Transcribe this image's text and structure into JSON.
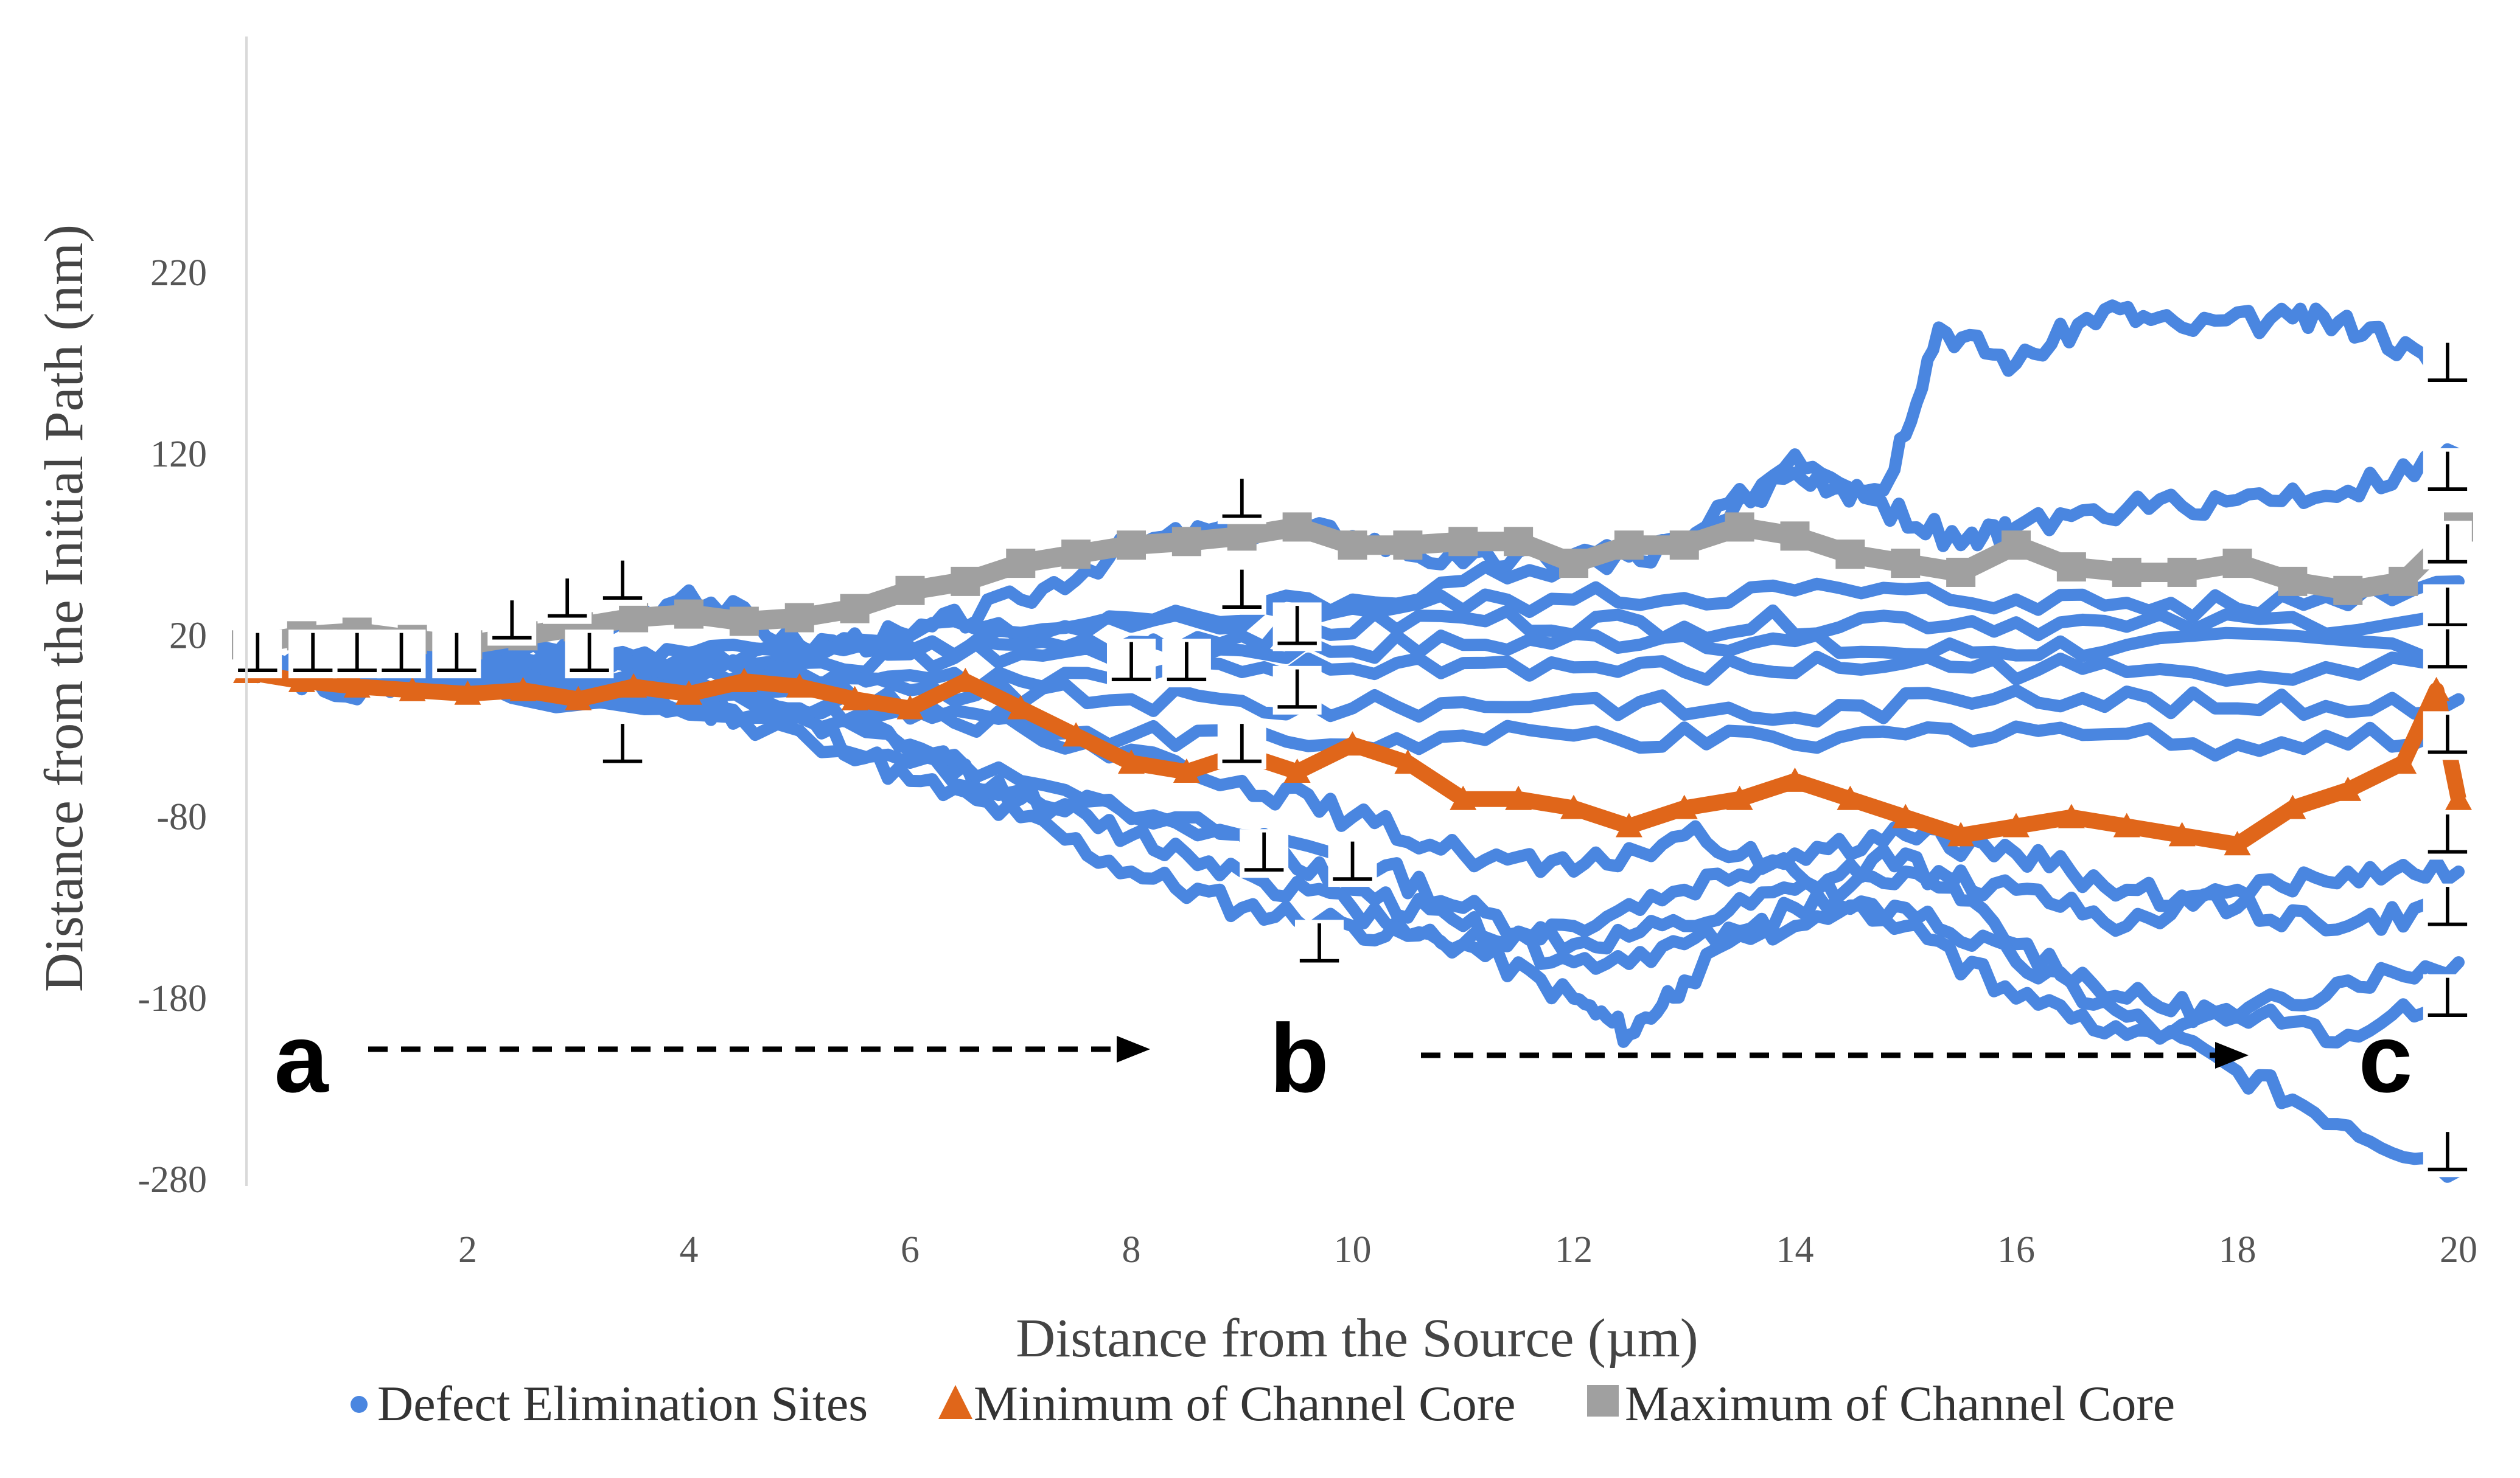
{
  "chart_data": {
    "type": "scatter",
    "title": "",
    "xlabel": "Distance from the Source (µm)",
    "ylabel": "Distance from the Initial Path (nm)",
    "xlim": [
      0,
      20
    ],
    "ylim": [
      -280,
      280
    ],
    "x_ticks": [
      2,
      4,
      6,
      8,
      10,
      12,
      14,
      16,
      18,
      20
    ],
    "y_ticks": [
      220,
      120,
      20,
      -80,
      -180,
      -280
    ],
    "grid": false,
    "legend_position": "bottom",
    "legend": [
      {
        "label": "Defect Elimination Sites",
        "marker": "circle",
        "color": "#4A86E0"
      },
      {
        "label": "Minimum of Channel Core",
        "marker": "triangle",
        "color": "#E0661A"
      },
      {
        "label": "Maximum of Channel Core",
        "marker": "square",
        "color": "#A0A0A0"
      }
    ],
    "annotations": [
      {
        "text": "a",
        "x": 0.5,
        "y": -218
      },
      {
        "text": "b",
        "x": 9.5,
        "y": -218
      },
      {
        "text": "c",
        "x": 19.3,
        "y": -218
      }
    ],
    "dislocation_symbol": "⊥",
    "dislocation_markers": [
      [
        0.1,
        10
      ],
      [
        0.6,
        10
      ],
      [
        1.0,
        10
      ],
      [
        1.4,
        10
      ],
      [
        1.9,
        10
      ],
      [
        2.4,
        28
      ],
      [
        2.9,
        40
      ],
      [
        3.1,
        10
      ],
      [
        3.4,
        50
      ],
      [
        3.4,
        -40
      ],
      [
        8.0,
        5
      ],
      [
        8.5,
        5
      ],
      [
        9.0,
        95
      ],
      [
        9.0,
        45
      ],
      [
        9.0,
        -40
      ],
      [
        9.5,
        25
      ],
      [
        9.5,
        -10
      ],
      [
        9.2,
        -100
      ],
      [
        10.0,
        -105
      ],
      [
        9.7,
        -150
      ],
      [
        19.9,
        170
      ],
      [
        19.9,
        110
      ],
      [
        19.9,
        70
      ],
      [
        19.9,
        35
      ],
      [
        19.9,
        12
      ],
      [
        19.9,
        -35
      ],
      [
        19.9,
        -90
      ],
      [
        19.9,
        -130
      ],
      [
        19.9,
        -180
      ],
      [
        19.9,
        -265
      ]
    ],
    "series": [
      {
        "name": "Defect Elimination Sites",
        "color": "#4A86E0",
        "lines": [
          [
            [
              0,
              3
            ],
            [
              1,
              -15
            ],
            [
              2,
              5
            ],
            [
              3,
              15
            ],
            [
              4,
              45
            ],
            [
              5,
              15
            ],
            [
              6,
              20
            ],
            [
              7,
              40
            ],
            [
              8,
              70
            ],
            [
              9,
              80
            ],
            [
              10,
              75
            ],
            [
              11,
              60
            ],
            [
              12,
              65
            ],
            [
              13,
              70
            ],
            [
              14,
              120
            ],
            [
              14.8,
              100
            ],
            [
              15.3,
              190
            ],
            [
              16,
              170
            ],
            [
              16.8,
              200
            ],
            [
              17.5,
              190
            ],
            [
              18.5,
              195
            ],
            [
              19.2,
              190
            ],
            [
              20,
              160
            ]
          ],
          [
            [
              0,
              3
            ],
            [
              2,
              8
            ],
            [
              4,
              10
            ],
            [
              6,
              20
            ],
            [
              8,
              30
            ],
            [
              10,
              40
            ],
            [
              12,
              60
            ],
            [
              13,
              70
            ],
            [
              14,
              110
            ],
            [
              14.7,
              95
            ],
            [
              15.5,
              70
            ],
            [
              16,
              80
            ],
            [
              17,
              90
            ],
            [
              18,
              95
            ],
            [
              19,
              100
            ],
            [
              20,
              120
            ]
          ],
          [
            [
              0,
              3
            ],
            [
              2,
              5
            ],
            [
              4,
              8
            ],
            [
              6,
              12
            ],
            [
              8,
              25
            ],
            [
              10,
              35
            ],
            [
              12,
              40
            ],
            [
              14,
              45
            ],
            [
              16,
              40
            ],
            [
              18,
              35
            ],
            [
              20,
              50
            ]
          ],
          [
            [
              0,
              3
            ],
            [
              3,
              5
            ],
            [
              5,
              8
            ],
            [
              7,
              15
            ],
            [
              9,
              20
            ],
            [
              11,
              30
            ],
            [
              13,
              25
            ],
            [
              15,
              30
            ],
            [
              17,
              25
            ],
            [
              20,
              30
            ]
          ],
          [
            [
              0,
              3
            ],
            [
              3,
              2
            ],
            [
              5,
              5
            ],
            [
              7,
              10
            ],
            [
              9,
              12
            ],
            [
              11,
              15
            ],
            [
              13,
              20
            ],
            [
              15,
              10
            ],
            [
              17,
              15
            ],
            [
              20,
              15
            ]
          ],
          [
            [
              0,
              3
            ],
            [
              3,
              0
            ],
            [
              5,
              0
            ],
            [
              7,
              -5
            ],
            [
              9,
              0
            ],
            [
              11,
              5
            ],
            [
              13,
              0
            ],
            [
              15,
              5
            ],
            [
              17,
              0
            ],
            [
              20,
              5
            ]
          ],
          [
            [
              0,
              3
            ],
            [
              3,
              -3
            ],
            [
              6,
              -10
            ],
            [
              8,
              -15
            ],
            [
              10,
              -20
            ],
            [
              12,
              -15
            ],
            [
              14,
              -25
            ],
            [
              16,
              -10
            ],
            [
              18,
              -20
            ],
            [
              20,
              -15
            ]
          ],
          [
            [
              0,
              3
            ],
            [
              3,
              -5
            ],
            [
              6,
              -20
            ],
            [
              8,
              -35
            ],
            [
              10,
              -40
            ],
            [
              12,
              -35
            ],
            [
              14,
              -40
            ],
            [
              16,
              -30
            ],
            [
              18,
              -40
            ],
            [
              20,
              -35
            ]
          ],
          [
            [
              0,
              3
            ],
            [
              2,
              -5
            ],
            [
              4,
              -20
            ],
            [
              5,
              -25
            ],
            [
              6,
              -60
            ],
            [
              7,
              -80
            ],
            [
              8,
              -110
            ],
            [
              9,
              -130
            ],
            [
              10,
              -140
            ],
            [
              11,
              -150
            ],
            [
              12,
              -180
            ],
            [
              12.5,
              -200
            ],
            [
              13,
              -170
            ],
            [
              14,
              -130
            ],
            [
              15,
              -110
            ],
            [
              16,
              -120
            ],
            [
              17,
              -140
            ],
            [
              18,
              -120
            ],
            [
              19,
              -110
            ],
            [
              20,
              -110
            ]
          ],
          [
            [
              0,
              3
            ],
            [
              3,
              -10
            ],
            [
              5,
              -20
            ],
            [
              6,
              -40
            ],
            [
              7,
              -70
            ],
            [
              8,
              -90
            ],
            [
              9,
              -110
            ],
            [
              10,
              -130
            ],
            [
              11,
              -150
            ],
            [
              12,
              -140
            ],
            [
              13,
              -120
            ],
            [
              14,
              -100
            ],
            [
              15,
              -90
            ],
            [
              16,
              -100
            ],
            [
              17,
              -120
            ],
            [
              18,
              -130
            ],
            [
              19,
              -140
            ],
            [
              20,
              -130
            ]
          ],
          [
            [
              0,
              3
            ],
            [
              4,
              -20
            ],
            [
              6,
              -50
            ],
            [
              8,
              -80
            ],
            [
              10,
              -100
            ],
            [
              11,
              -130
            ],
            [
              12,
              -150
            ],
            [
              13,
              -140
            ],
            [
              14,
              -120
            ],
            [
              15,
              -100
            ],
            [
              16,
              -150
            ],
            [
              17,
              -180
            ],
            [
              18,
              -190
            ],
            [
              19,
              -170
            ],
            [
              20,
              -160
            ]
          ],
          [
            [
              0,
              3
            ],
            [
              5,
              -25
            ],
            [
              7,
              -60
            ],
            [
              9,
              -90
            ],
            [
              10,
              -120
            ],
            [
              11,
              -140
            ],
            [
              12,
              -160
            ],
            [
              13,
              -150
            ],
            [
              14,
              -140
            ],
            [
              15,
              -130
            ],
            [
              16,
              -160
            ],
            [
              17,
              -190
            ],
            [
              18,
              -220
            ],
            [
              19,
              -250
            ],
            [
              20,
              -275
            ]
          ],
          [
            [
              0,
              3
            ],
            [
              5,
              -10
            ],
            [
              7,
              -30
            ],
            [
              9,
              -60
            ],
            [
              10,
              -80
            ],
            [
              11,
              -100
            ],
            [
              12,
              -110
            ],
            [
              13,
              -90
            ],
            [
              14,
              -110
            ],
            [
              15,
              -140
            ],
            [
              16,
              -180
            ],
            [
              17,
              -200
            ],
            [
              18,
              -190
            ],
            [
              19,
              -200
            ],
            [
              20,
              -180
            ]
          ]
        ]
      },
      {
        "name": "Minimum of Channel Core",
        "color": "#E0661A",
        "values": [
          [
            0,
            0
          ],
          [
            0.5,
            -5
          ],
          [
            1,
            -8
          ],
          [
            1.5,
            -10
          ],
          [
            2,
            -12
          ],
          [
            2.5,
            -10
          ],
          [
            3,
            -15
          ],
          [
            3.5,
            -8
          ],
          [
            4,
            -12
          ],
          [
            4.5,
            -5
          ],
          [
            5,
            -8
          ],
          [
            5.5,
            -15
          ],
          [
            6,
            -20
          ],
          [
            6.5,
            -5
          ],
          [
            7,
            -20
          ],
          [
            7.5,
            -35
          ],
          [
            8,
            -50
          ],
          [
            8.5,
            -55
          ],
          [
            9,
            -45
          ],
          [
            9.5,
            -55
          ],
          [
            10,
            -40
          ],
          [
            10.5,
            -50
          ],
          [
            11,
            -70
          ],
          [
            11.5,
            -70
          ],
          [
            12,
            -75
          ],
          [
            12.5,
            -85
          ],
          [
            13,
            -75
          ],
          [
            13.5,
            -70
          ],
          [
            14,
            -60
          ],
          [
            14.5,
            -70
          ],
          [
            15,
            -80
          ],
          [
            15.5,
            -90
          ],
          [
            16,
            -85
          ],
          [
            16.5,
            -80
          ],
          [
            17,
            -85
          ],
          [
            17.5,
            -90
          ],
          [
            18,
            -95
          ],
          [
            18.5,
            -75
          ],
          [
            19,
            -65
          ],
          [
            19.5,
            -50
          ],
          [
            19.8,
            -10
          ],
          [
            20,
            -70
          ]
        ]
      },
      {
        "name": "Maximum of Channel Core",
        "color": "#A0A0A0",
        "values": [
          [
            0,
            15
          ],
          [
            0.5,
            20
          ],
          [
            1,
            22
          ],
          [
            1.5,
            18
          ],
          [
            2,
            15
          ],
          [
            2.5,
            20
          ],
          [
            3,
            25
          ],
          [
            3.5,
            30
          ],
          [
            4,
            32
          ],
          [
            4.5,
            28
          ],
          [
            5,
            30
          ],
          [
            5.5,
            35
          ],
          [
            6,
            45
          ],
          [
            6.5,
            50
          ],
          [
            7,
            60
          ],
          [
            7.5,
            65
          ],
          [
            8,
            70
          ],
          [
            8.5,
            72
          ],
          [
            9,
            75
          ],
          [
            9.5,
            80
          ],
          [
            10,
            70
          ],
          [
            10.5,
            70
          ],
          [
            11,
            72
          ],
          [
            11.5,
            72
          ],
          [
            12,
            60
          ],
          [
            12.5,
            70
          ],
          [
            13,
            70
          ],
          [
            13.5,
            80
          ],
          [
            14,
            75
          ],
          [
            14.5,
            65
          ],
          [
            15,
            60
          ],
          [
            15.5,
            55
          ],
          [
            16,
            70
          ],
          [
            16.5,
            58
          ],
          [
            17,
            55
          ],
          [
            17.5,
            55
          ],
          [
            18,
            60
          ],
          [
            18.5,
            50
          ],
          [
            19,
            45
          ],
          [
            19.5,
            50
          ],
          [
            20,
            80
          ]
        ]
      }
    ]
  }
}
